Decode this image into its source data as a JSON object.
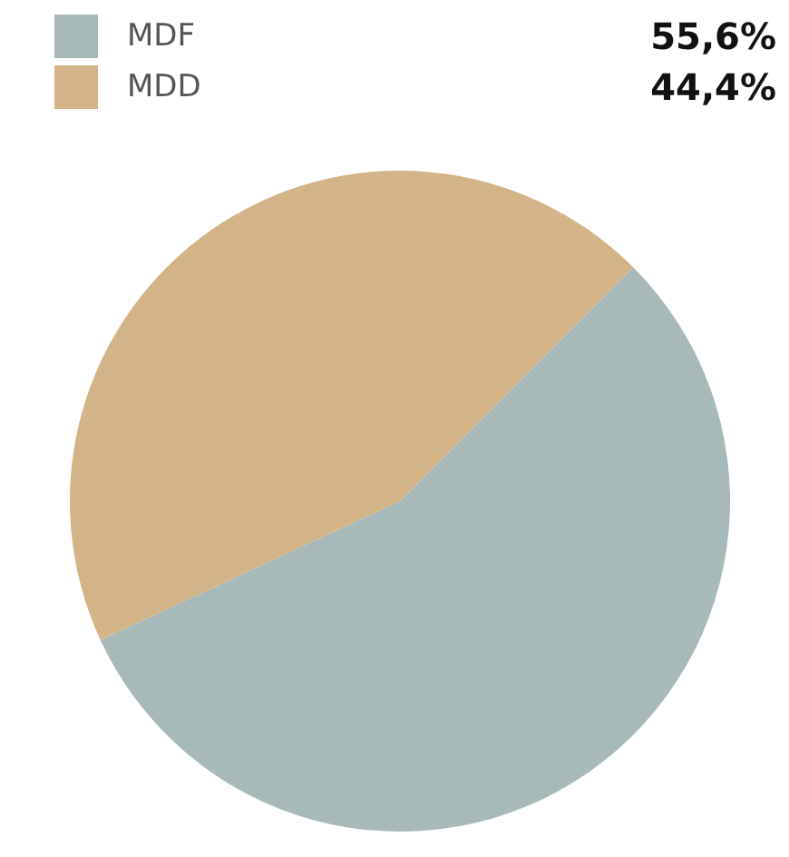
{
  "chart_data": {
    "type": "pie",
    "categories": [
      "MDF",
      "MDD"
    ],
    "values": [
      55.6,
      44.4
    ],
    "colors": [
      "#a8b9ba",
      "#d2b488"
    ],
    "value_labels": [
      "55,6%",
      "44,4%"
    ],
    "legend": "top left"
  }
}
